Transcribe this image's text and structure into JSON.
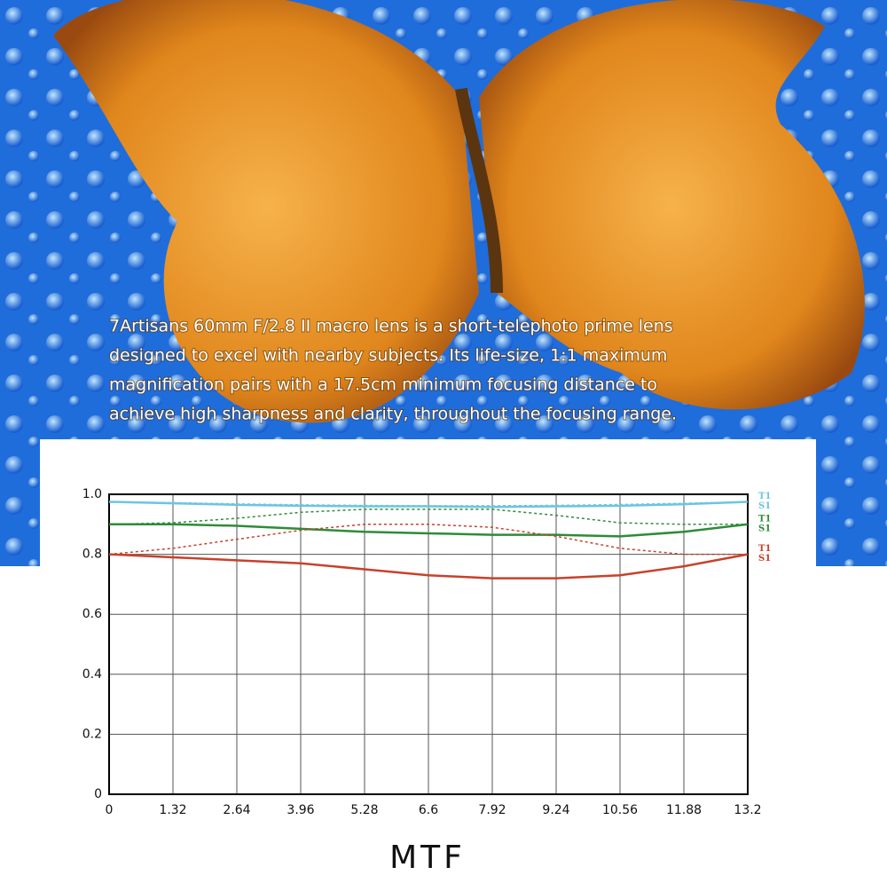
{
  "description": [
    "7Artisans  60mm F/2.8 II macro lens is a short-telephoto prime lens",
    "designed to excel with nearby subjects. Its life-size, 1:1 maximum",
    "magnification pairs with a 17.5cm minimum focusing distance to",
    "achieve high sharpness and clarity, throughout the focusing range."
  ],
  "chart_data": {
    "type": "line",
    "title": "MTF",
    "x": [
      0,
      1.32,
      2.64,
      3.96,
      5.28,
      6.6,
      7.92,
      9.24,
      10.56,
      11.88,
      13.2
    ],
    "xlim": [
      0,
      13.2
    ],
    "xticks": [
      0,
      1.32,
      2.64,
      3.96,
      5.28,
      6.6,
      7.92,
      9.24,
      10.56,
      11.88,
      13.2
    ],
    "ylim": [
      0,
      1
    ],
    "yticks": [
      0,
      0.2,
      0.4,
      0.6,
      0.8,
      {
        "value": 1,
        "label": "1.0"
      }
    ],
    "grid": true,
    "series": [
      {
        "name": "T1",
        "color": "#6cc5e0",
        "style": "dotted",
        "values": [
          0.975,
          0.972,
          0.968,
          0.965,
          0.963,
          0.962,
          0.962,
          0.963,
          0.966,
          0.97,
          0.975
        ]
      },
      {
        "name": "S1",
        "color": "#6cc5e0",
        "style": "solid",
        "values": [
          0.975,
          0.97,
          0.965,
          0.962,
          0.96,
          0.96,
          0.958,
          0.96,
          0.962,
          0.967,
          0.975
        ]
      },
      {
        "name": "T1",
        "color": "#2e8b3a",
        "style": "dotted",
        "values": [
          0.9,
          0.905,
          0.92,
          0.94,
          0.95,
          0.95,
          0.95,
          0.93,
          0.905,
          0.9,
          0.9
        ]
      },
      {
        "name": "S1",
        "color": "#2e8b3a",
        "style": "solid",
        "values": [
          0.9,
          0.9,
          0.895,
          0.885,
          0.875,
          0.87,
          0.865,
          0.865,
          0.86,
          0.875,
          0.9
        ]
      },
      {
        "name": "T1",
        "color": "#c8412c",
        "style": "dotted",
        "values": [
          0.8,
          0.82,
          0.85,
          0.88,
          0.9,
          0.9,
          0.89,
          0.86,
          0.82,
          0.8,
          0.8
        ]
      },
      {
        "name": "S1",
        "color": "#c8412c",
        "style": "solid",
        "values": [
          0.8,
          0.79,
          0.78,
          0.77,
          0.75,
          0.73,
          0.72,
          0.72,
          0.73,
          0.76,
          0.8
        ]
      }
    ]
  }
}
